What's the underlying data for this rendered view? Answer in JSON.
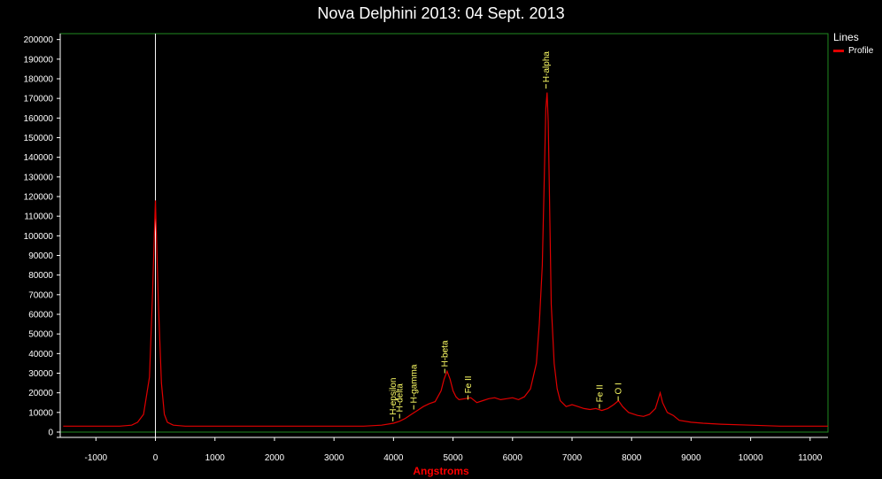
{
  "chart_data": {
    "type": "line",
    "title": "Nova Delphini 2013: 04 Sept. 2013",
    "xlabel": "Angstroms",
    "ylabel": "",
    "xlim": [
      -1600,
      11300
    ],
    "ylim": [
      0,
      203000
    ],
    "x_ticks": [
      -1000,
      0,
      1000,
      2000,
      3000,
      4000,
      5000,
      6000,
      7000,
      8000,
      9000,
      10000,
      11000
    ],
    "x_tick_labels": [
      "-1000",
      "0",
      "1000",
      "2000",
      "3000",
      "4000",
      "5000",
      "6000",
      "7000",
      "8000",
      "9000",
      "10000",
      "11000"
    ],
    "y_ticks": [
      0,
      10000,
      20000,
      30000,
      40000,
      50000,
      60000,
      70000,
      80000,
      90000,
      100000,
      110000,
      120000,
      130000,
      140000,
      150000,
      160000,
      170000,
      180000,
      190000,
      200000
    ],
    "y_tick_labels": [
      "0",
      "10000",
      "20000",
      "30000",
      "40000",
      "50000",
      "60000",
      "70000",
      "80000",
      "90000",
      "100000",
      "110000",
      "120000",
      "130000",
      "140000",
      "150000",
      "160000",
      "170000",
      "180000",
      "190000",
      "200000"
    ],
    "grid": false,
    "legend": {
      "title": "Lines",
      "position": "right"
    },
    "vertical_marker_x": 0,
    "series": [
      {
        "name": "Profile",
        "color": "#e00000",
        "x": [
          -1550,
          -600,
          -400,
          -300,
          -200,
          -100,
          -50,
          0,
          50,
          100,
          150,
          200,
          300,
          500,
          1000,
          2000,
          3000,
          3500,
          3800,
          4000,
          4100,
          4200,
          4300,
          4400,
          4500,
          4600,
          4700,
          4800,
          4850,
          4900,
          4950,
          5000,
          5050,
          5100,
          5200,
          5300,
          5400,
          5500,
          5600,
          5700,
          5800,
          5900,
          6000,
          6100,
          6200,
          6300,
          6400,
          6450,
          6500,
          6530,
          6560,
          6580,
          6600,
          6620,
          6650,
          6700,
          6750,
          6800,
          6900,
          7000,
          7100,
          7200,
          7300,
          7400,
          7500,
          7600,
          7700,
          7780,
          7850,
          7950,
          8100,
          8200,
          8300,
          8400,
          8450,
          8480,
          8520,
          8600,
          8700,
          8800,
          9000,
          9200,
          9500,
          10000,
          10500,
          11000,
          11300
        ],
        "values": [
          3000,
          3000,
          3500,
          5000,
          9000,
          28000,
          70000,
          118000,
          65000,
          25000,
          9000,
          5000,
          3500,
          3000,
          3000,
          3000,
          3000,
          3000,
          3500,
          4500,
          5500,
          7000,
          9000,
          11000,
          13000,
          14500,
          15500,
          21000,
          27000,
          31000,
          27000,
          21000,
          18000,
          16500,
          17000,
          17500,
          15000,
          16000,
          17000,
          17500,
          16500,
          17000,
          17500,
          16500,
          18000,
          22000,
          35000,
          55000,
          85000,
          125000,
          165000,
          173000,
          158000,
          120000,
          65000,
          35000,
          22000,
          16000,
          13000,
          14000,
          13000,
          12000,
          11500,
          12000,
          11000,
          12000,
          14000,
          16000,
          13000,
          10000,
          8500,
          8000,
          9000,
          12000,
          17000,
          20000,
          15000,
          10000,
          8500,
          6000,
          5000,
          4500,
          4000,
          3500,
          3000,
          3000,
          3000
        ]
      }
    ],
    "annotations": [
      {
        "x": 3990,
        "y": 5500,
        "text": "H-epsilon"
      },
      {
        "x": 4102,
        "y": 7000,
        "text": "H-delta"
      },
      {
        "x": 4340,
        "y": 11500,
        "text": "H-gamma"
      },
      {
        "x": 4861,
        "y": 30000,
        "text": "H-beta"
      },
      {
        "x": 5250,
        "y": 16500,
        "text": "Fe II"
      },
      {
        "x": 6563,
        "y": 175000,
        "text": "H-alpha"
      },
      {
        "x": 7460,
        "y": 12000,
        "text": "Fe II"
      },
      {
        "x": 7775,
        "y": 16000,
        "text": "O I"
      }
    ]
  }
}
